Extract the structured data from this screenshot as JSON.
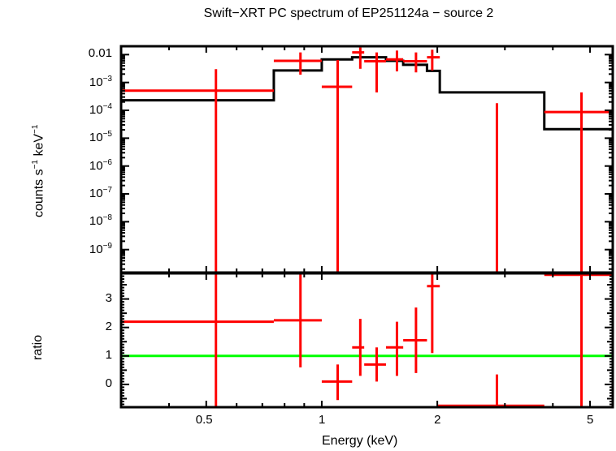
{
  "title": "Swift−XRT PC spectrum of EP251124a − source 2",
  "colors": {
    "data": "#ff0000",
    "model": "#000000",
    "ratio_line": "#00ff00",
    "axes": "#000000"
  },
  "chart_data": [
    {
      "type": "scatter",
      "panel": "upper",
      "title": "Swift−XRT PC spectrum of EP251124a − source 2",
      "xlabel": "Energy (keV)",
      "ylabel": "counts s⁻¹ keV⁻¹",
      "xscale": "log",
      "yscale": "log",
      "xlim": [
        0.3,
        5.73
      ],
      "ylim": [
        1.5e-10,
        0.02
      ],
      "ytick_labels": [
        "0.01",
        "10⁻³",
        "10⁻⁴",
        "10⁻⁵",
        "10⁻⁶",
        "10⁻⁷",
        "10⁻⁸",
        "10⁻⁹"
      ],
      "series": [
        {
          "name": "data",
          "style": "errorbar",
          "points": [
            {
              "x": 0.53,
              "xlo": 0.3,
              "xhi": 0.75,
              "y": 0.00051,
              "ylo": 1.5e-10,
              "yhi": 0.003
            },
            {
              "x": 0.88,
              "xlo": 0.75,
              "xhi": 1.0,
              "y": 0.006,
              "ylo": 0.0019,
              "yhi": 0.012
            },
            {
              "x": 1.1,
              "xlo": 1.0,
              "xhi": 1.2,
              "y": 0.0007,
              "ylo": 1.5e-10,
              "yhi": 0.0064
            },
            {
              "x": 1.26,
              "xlo": 1.2,
              "xhi": 1.29,
              "y": 0.012,
              "ylo": 0.0031,
              "yhi": 0.018
            },
            {
              "x": 1.39,
              "xlo": 1.29,
              "xhi": 1.47,
              "y": 0.0058,
              "ylo": 0.00044,
              "yhi": 0.012
            },
            {
              "x": 1.57,
              "xlo": 1.47,
              "xhi": 1.63,
              "y": 0.0067,
              "ylo": 0.0025,
              "yhi": 0.014
            },
            {
              "x": 1.76,
              "xlo": 1.63,
              "xhi": 1.88,
              "y": 0.0058,
              "ylo": 0.0023,
              "yhi": 0.012
            },
            {
              "x": 1.94,
              "xlo": 1.88,
              "xhi": 2.03,
              "y": 0.008,
              "ylo": 0.0027,
              "yhi": 0.015
            },
            {
              "x": 2.86,
              "xlo": 2.86,
              "xhi": 2.86,
              "y": 1.5e-10,
              "ylo": 1.5e-10,
              "yhi": 0.00018
            },
            {
              "x": 4.75,
              "xlo": 3.8,
              "xhi": 5.73,
              "y": 8.7e-05,
              "ylo": 1.5e-10,
              "yhi": 0.00044
            }
          ]
        },
        {
          "name": "model",
          "style": "step",
          "steps": [
            {
              "xlo": 0.3,
              "xhi": 0.75,
              "y": 0.00023
            },
            {
              "xlo": 0.75,
              "xhi": 1.0,
              "y": 0.0027
            },
            {
              "xlo": 1.0,
              "xhi": 1.2,
              "y": 0.0067
            },
            {
              "xlo": 1.2,
              "xhi": 1.47,
              "y": 0.008
            },
            {
              "xlo": 1.47,
              "xhi": 1.63,
              "y": 0.006
            },
            {
              "xlo": 1.63,
              "xhi": 1.88,
              "y": 0.0043
            },
            {
              "xlo": 1.88,
              "xhi": 2.03,
              "y": 0.0026
            },
            {
              "xlo": 2.03,
              "xhi": 3.8,
              "y": 0.00044
            },
            {
              "xlo": 3.8,
              "xhi": 5.73,
              "y": 2.1e-05
            }
          ]
        }
      ]
    },
    {
      "type": "scatter",
      "panel": "lower",
      "xlabel": "Energy (keV)",
      "ylabel": "ratio",
      "xscale": "log",
      "yscale": "linear",
      "xlim": [
        0.3,
        5.73
      ],
      "ylim": [
        -0.8,
        3.9
      ],
      "xtick_labels": [
        "0.5",
        "1",
        "2",
        "5"
      ],
      "ytick_labels": [
        "0",
        "1",
        "2",
        "3"
      ],
      "reference_line": 1,
      "series": [
        {
          "name": "ratio",
          "style": "errorbar",
          "points": [
            {
              "x": 0.53,
              "xlo": 0.3,
              "xhi": 0.75,
              "y": 2.2,
              "ylo": -0.8,
              "yhi": 3.9
            },
            {
              "x": 0.88,
              "xlo": 0.75,
              "xhi": 1.0,
              "y": 2.25,
              "ylo": 0.6,
              "yhi": 3.9
            },
            {
              "x": 1.1,
              "xlo": 1.0,
              "xhi": 1.2,
              "y": 0.1,
              "ylo": -0.55,
              "yhi": 0.7
            },
            {
              "x": 1.26,
              "xlo": 1.2,
              "xhi": 1.29,
              "y": 1.3,
              "ylo": 0.3,
              "yhi": 2.3
            },
            {
              "x": 1.39,
              "xlo": 1.29,
              "xhi": 1.47,
              "y": 0.7,
              "ylo": 0.1,
              "yhi": 1.3
            },
            {
              "x": 1.57,
              "xlo": 1.47,
              "xhi": 1.63,
              "y": 1.3,
              "ylo": 0.3,
              "yhi": 2.2
            },
            {
              "x": 1.76,
              "xlo": 1.63,
              "xhi": 1.88,
              "y": 1.55,
              "ylo": 0.4,
              "yhi": 2.7
            },
            {
              "x": 1.94,
              "xlo": 1.88,
              "xhi": 2.03,
              "y": 3.45,
              "ylo": 1.1,
              "yhi": 3.9
            },
            {
              "x": 2.86,
              "xlo": 2.0,
              "xhi": 3.8,
              "y": -0.75,
              "ylo": -0.8,
              "yhi": 0.35
            },
            {
              "x": 4.75,
              "xlo": 3.8,
              "xhi": 5.73,
              "y": 3.85,
              "ylo": -0.8,
              "yhi": 3.9
            }
          ]
        }
      ]
    }
  ],
  "labels": {
    "ylabel_upper_main": "counts s",
    "ylabel_upper_sup1": "−1",
    "ylabel_upper_mid": " keV",
    "ylabel_upper_sup2": "−1",
    "ylabel_lower": "ratio",
    "xlabel": "Energy (keV)",
    "upper_yticks": [
      {
        "base": "0.01",
        "exp": ""
      },
      {
        "base": "10",
        "exp": "−3"
      },
      {
        "base": "10",
        "exp": "−4"
      },
      {
        "base": "10",
        "exp": "−5"
      },
      {
        "base": "10",
        "exp": "−6"
      },
      {
        "base": "10",
        "exp": "−7"
      },
      {
        "base": "10",
        "exp": "−8"
      },
      {
        "base": "10",
        "exp": "−9"
      }
    ],
    "lower_yticks": [
      "3",
      "2",
      "1",
      "0"
    ],
    "xticks": [
      "0.5",
      "1",
      "2",
      "5"
    ]
  }
}
